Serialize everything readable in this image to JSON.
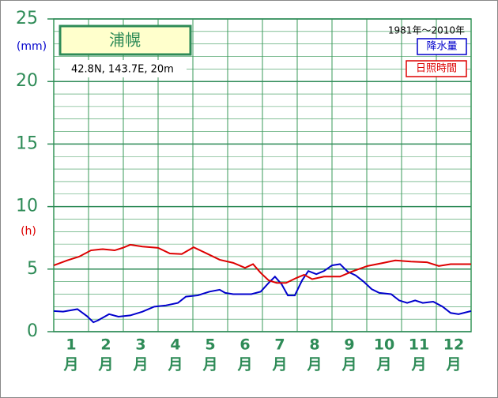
{
  "chart_data": {
    "type": "line",
    "title": "浦幌",
    "subtitle": "42.8N,  143.7E,  20m",
    "period": "1981年～2010年",
    "y_unit_left": "(mm)",
    "y_unit_right": "(h)",
    "categories": [
      "1",
      "2",
      "3",
      "4",
      "5",
      "6",
      "7",
      "8",
      "9",
      "10",
      "11",
      "12"
    ],
    "x_unit": "月",
    "xlim": [
      0,
      12
    ],
    "xticks": [
      0,
      1,
      2,
      3,
      4,
      5,
      6,
      7,
      8,
      9,
      10,
      11,
      12
    ],
    "ylim": [
      0,
      25
    ],
    "yticks": [
      0,
      5,
      10,
      15,
      20,
      25
    ],
    "minor_ystep": 1,
    "grid": true,
    "series": [
      {
        "name": "降水量",
        "color": "#0000cc",
        "x": [
          0,
          0.27,
          0.68,
          0.95,
          1.14,
          1.27,
          1.59,
          1.86,
          2.2,
          2.55,
          2.89,
          3.23,
          3.57,
          3.8,
          4.14,
          4.48,
          4.77,
          4.93,
          5.16,
          5.39,
          5.68,
          5.95,
          6.18,
          6.36,
          6.55,
          6.73,
          6.93,
          7.14,
          7.32,
          7.55,
          7.77,
          8.0,
          8.23,
          8.45,
          8.68,
          8.91,
          9.14,
          9.36,
          9.7,
          9.93,
          10.16,
          10.39,
          10.61,
          10.91,
          11.18,
          11.41,
          11.64,
          12.0
        ],
        "values": [
          1.65,
          1.6,
          1.8,
          1.25,
          0.75,
          0.9,
          1.4,
          1.2,
          1.3,
          1.6,
          2.0,
          2.1,
          2.3,
          2.8,
          2.9,
          3.2,
          3.35,
          3.1,
          3.0,
          3.0,
          3.0,
          3.2,
          3.9,
          4.4,
          3.8,
          2.9,
          2.9,
          4.1,
          4.85,
          4.6,
          4.85,
          5.3,
          5.4,
          4.8,
          4.5,
          4.0,
          3.4,
          3.1,
          3.0,
          2.5,
          2.3,
          2.5,
          2.3,
          2.4,
          2.0,
          1.5,
          1.4,
          1.65
        ]
      },
      {
        "name": "日照時間",
        "color": "#dd0000",
        "x": [
          0,
          0.39,
          0.73,
          1.07,
          1.41,
          1.75,
          1.98,
          2.2,
          2.55,
          3.0,
          3.34,
          3.68,
          4.02,
          4.36,
          4.77,
          5.16,
          5.5,
          5.73,
          5.95,
          6.18,
          6.41,
          6.68,
          6.98,
          7.2,
          7.43,
          7.77,
          8.23,
          8.57,
          9.02,
          9.48,
          9.82,
          10.27,
          10.73,
          11.07,
          11.41,
          12.0
        ],
        "values": [
          5.3,
          5.7,
          6.0,
          6.5,
          6.6,
          6.5,
          6.7,
          6.95,
          6.8,
          6.7,
          6.25,
          6.2,
          6.75,
          6.3,
          5.75,
          5.5,
          5.1,
          5.4,
          4.7,
          4.1,
          3.9,
          3.9,
          4.3,
          4.55,
          4.2,
          4.4,
          4.4,
          4.8,
          5.25,
          5.5,
          5.7,
          5.6,
          5.55,
          5.25,
          5.4,
          5.4
        ]
      }
    ]
  }
}
